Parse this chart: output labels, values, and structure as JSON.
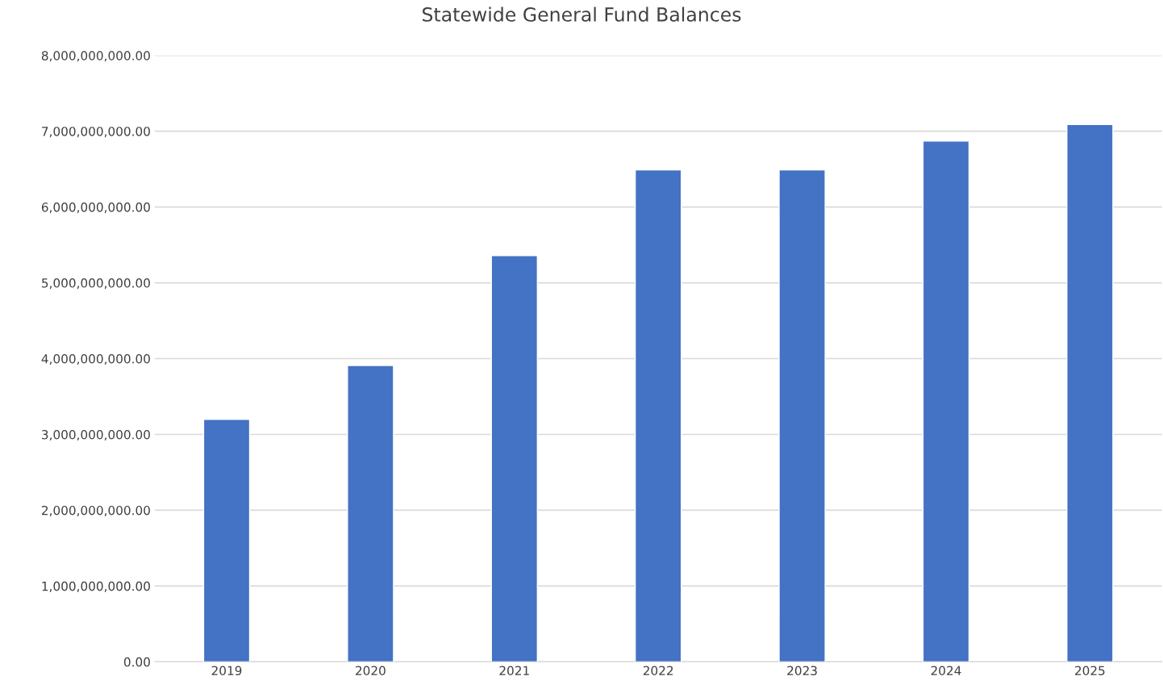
{
  "chart_data": {
    "type": "bar",
    "title": "Statewide General Fund Balances",
    "categories": [
      "2019",
      "2020",
      "2021",
      "2022",
      "2023",
      "2024",
      "2025"
    ],
    "values": [
      3200000000,
      3910000000,
      5360000000,
      6490000000,
      6490000000,
      6870000000,
      7090000000
    ],
    "color": "#4472c4",
    "ylim": [
      0,
      8000000000
    ],
    "yticks": [
      {
        "value": 0,
        "label": "0.00"
      },
      {
        "value": 1000000000,
        "label": "1,000,000,000.00"
      },
      {
        "value": 2000000000,
        "label": "2,000,000,000.00"
      },
      {
        "value": 3000000000,
        "label": "3,000,000,000.00"
      },
      {
        "value": 4000000000,
        "label": "4,000,000,000.00"
      },
      {
        "value": 5000000000,
        "label": "5,000,000,000.00"
      },
      {
        "value": 6000000000,
        "label": "6,000,000,000.00"
      },
      {
        "value": 7000000000,
        "label": "7,000,000,000.00"
      },
      {
        "value": 8000000000,
        "label": "8,000,000,000.00"
      }
    ],
    "grid": "y"
  }
}
